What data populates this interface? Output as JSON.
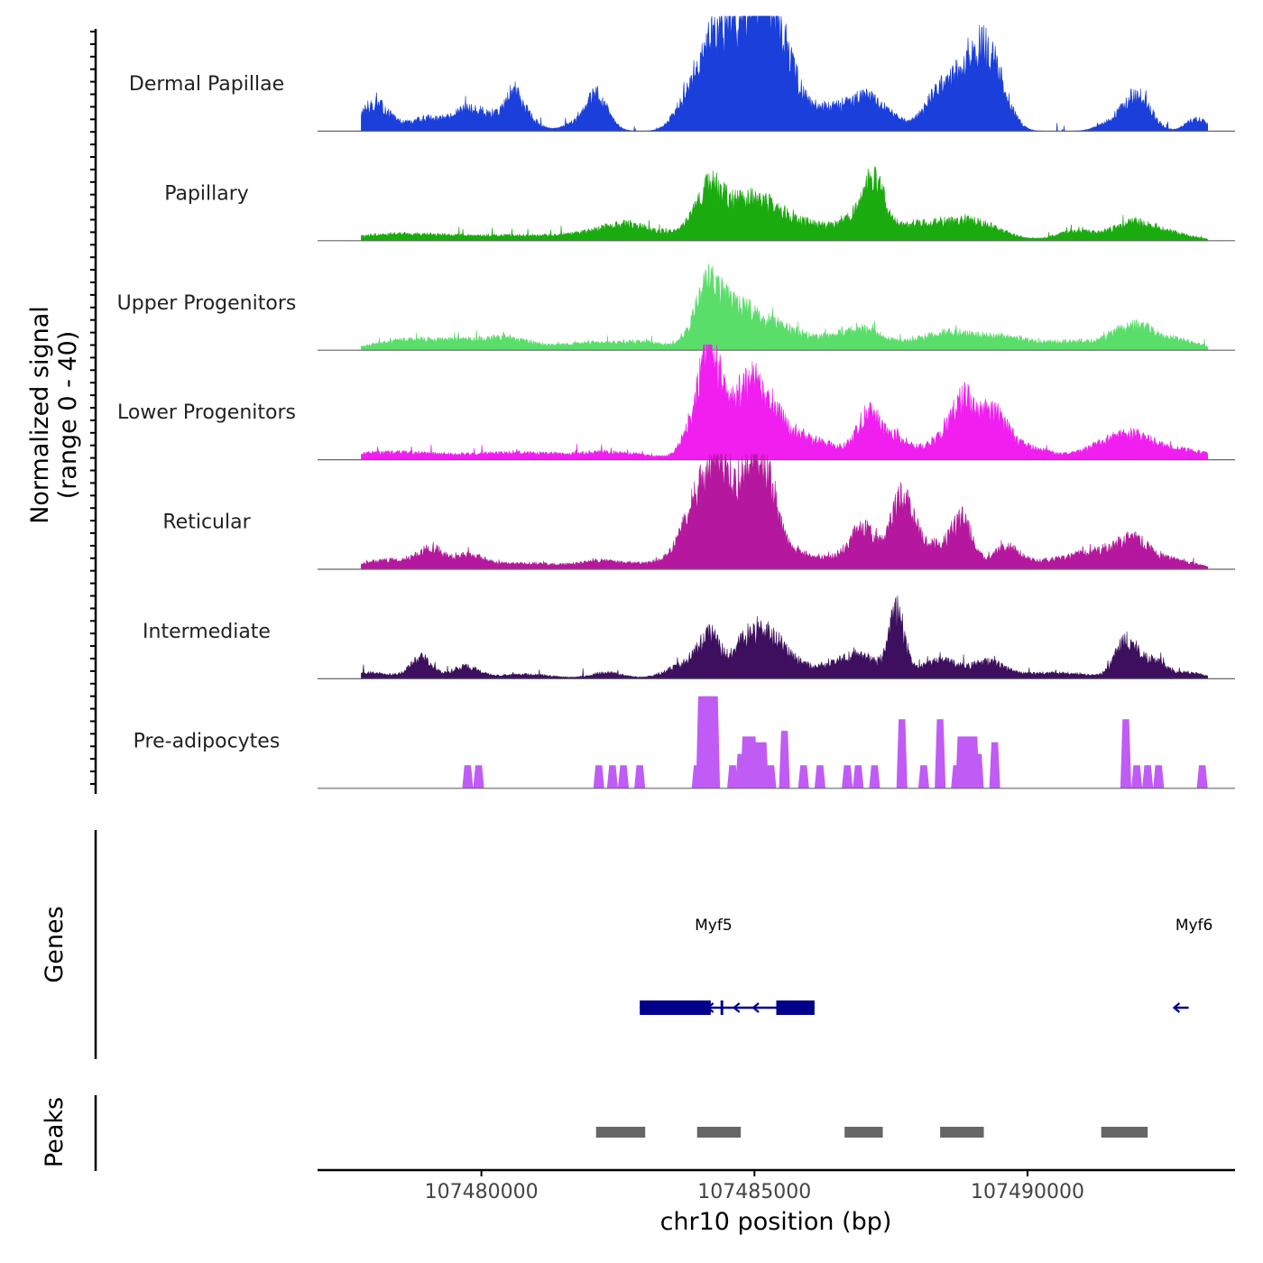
{
  "chart_data": {
    "type": "area",
    "chromosome": "chr10",
    "xlabel": "chr10 position (bp)",
    "xlim": [
      107477000,
      107493800
    ],
    "x_ticks": [
      107480000,
      107485000,
      107490000
    ],
    "x_tick_labels": [
      "107480000",
      "107485000",
      "107490000"
    ],
    "coverage": {
      "ylabel_line1": "Normalized signal",
      "ylabel_line2": "(range 0 - 40)",
      "ylim": [
        0,
        40
      ],
      "series": [
        {
          "name": "Dermal Papillae",
          "color": "#1a3fdb",
          "start": 107477800,
          "end": 107493300,
          "peaks": [
            [
              107477800,
              1.0,
              3
            ],
            [
              107478050,
              0.8,
              4
            ],
            [
              107478200,
              1.0,
              4
            ],
            [
              107478850,
              1.2,
              2
            ],
            [
              107479100,
              1.0,
              3
            ],
            [
              107479700,
              1.0,
              6
            ],
            [
              107480050,
              1.0,
              3
            ],
            [
              107480350,
              1.0,
              3
            ],
            [
              107480600,
              0.6,
              10
            ],
            [
              107480850,
              0.8,
              4
            ],
            [
              107481900,
              1.2,
              4
            ],
            [
              107482100,
              0.6,
              6
            ],
            [
              107482200,
              0.8,
              4
            ],
            [
              107483800,
              1.0,
              10
            ],
            [
              107484150,
              1.0,
              16
            ],
            [
              107484400,
              1.0,
              12
            ],
            [
              107484550,
              1.0,
              9
            ],
            [
              107484800,
              1.0,
              10
            ],
            [
              107485100,
              1.4,
              27
            ],
            [
              107485250,
              1.2,
              12
            ],
            [
              107485500,
              1.0,
              9
            ],
            [
              107485800,
              1.0,
              6
            ],
            [
              107486300,
              1.0,
              6
            ],
            [
              107486750,
              1.0,
              6
            ],
            [
              107487100,
              1.0,
              8
            ],
            [
              107487500,
              1.0,
              4
            ],
            [
              107488300,
              1.0,
              8
            ],
            [
              107488850,
              1.4,
              18
            ],
            [
              107489200,
              1.0,
              12
            ],
            [
              107489450,
              1.0,
              10
            ],
            [
              107491500,
              1.0,
              2
            ],
            [
              107491950,
              1.0,
              10
            ],
            [
              107492150,
              0.8,
              3
            ],
            [
              107493100,
              0.8,
              4
            ]
          ]
        },
        {
          "name": "Papillary",
          "color": "#1aab0f",
          "start": 107477800,
          "end": 107493300,
          "peaks": [
            [
              107478150,
              3.0,
              1.5
            ],
            [
              107479200,
              3.0,
              1.5
            ],
            [
              107480700,
              2.5,
              1.5
            ],
            [
              107482300,
              2.5,
              3.0
            ],
            [
              107482700,
              1.5,
              2.0
            ],
            [
              107483600,
              3.5,
              2.0
            ],
            [
              107484150,
              1.0,
              14.0
            ],
            [
              107484700,
              1.6,
              8.0
            ],
            [
              107485200,
              1.6,
              8.0
            ],
            [
              107486000,
              2.0,
              5.0
            ],
            [
              107486900,
              1.2,
              6.0
            ],
            [
              107487200,
              0.8,
              16.0
            ],
            [
              107488000,
              2.0,
              5.0
            ],
            [
              107489000,
              2.0,
              6.0
            ],
            [
              107490900,
              1.5,
              3.0
            ],
            [
              107491950,
              1.5,
              6.0
            ],
            [
              107492700,
              1.5,
              2.0
            ]
          ]
        },
        {
          "name": "Upper Progenitors",
          "color": "#5ade6a",
          "start": 107477800,
          "end": 107493300,
          "peaks": [
            [
              107478400,
              2.0,
              1.5
            ],
            [
              107479500,
              3.5,
              3.5
            ],
            [
              107480500,
              1.5,
              2.5
            ],
            [
              107482100,
              2.5,
              2.5
            ],
            [
              107483100,
              1.5,
              2.0
            ],
            [
              107484150,
              1.0,
              21.0
            ],
            [
              107484700,
              1.2,
              12.0
            ],
            [
              107485300,
              1.5,
              7.0
            ],
            [
              107486100,
              2.0,
              4.0
            ],
            [
              107487000,
              1.5,
              6.0
            ],
            [
              107488600,
              2.5,
              6.0
            ],
            [
              107489700,
              1.5,
              3.0
            ],
            [
              107490800,
              2.0,
              3.0
            ],
            [
              107491950,
              1.5,
              8.0
            ],
            [
              107492800,
              1.5,
              3.0
            ]
          ]
        },
        {
          "name": "Lower Progenitors",
          "color": "#f01ff0",
          "start": 107477800,
          "end": 107493300,
          "peaks": [
            [
              107478100,
              2.5,
              2.0
            ],
            [
              107479200,
              3.0,
              1.5
            ],
            [
              107480600,
              2.5,
              2.0
            ],
            [
              107482300,
              3.0,
              2.5
            ],
            [
              107483900,
              0.8,
              12.0
            ],
            [
              107484200,
              0.7,
              34.0
            ],
            [
              107484800,
              1.2,
              20.0
            ],
            [
              107485200,
              1.2,
              12.0
            ],
            [
              107485700,
              1.5,
              6.0
            ],
            [
              107486400,
              2.0,
              4.0
            ],
            [
              107487100,
              0.8,
              14.0
            ],
            [
              107487600,
              1.0,
              7.0
            ],
            [
              107488400,
              1.2,
              6.0
            ],
            [
              107488850,
              0.9,
              18.0
            ],
            [
              107489400,
              1.0,
              14.0
            ],
            [
              107490000,
              1.5,
              4.0
            ],
            [
              107491500,
              2.0,
              5.0
            ],
            [
              107492000,
              1.5,
              5.0
            ],
            [
              107492900,
              2.0,
              3.0
            ]
          ]
        },
        {
          "name": "Reticular",
          "color": "#b5179e",
          "start": 107477800,
          "end": 107493300,
          "peaks": [
            [
              107478300,
              2.0,
              3.0
            ],
            [
              107479100,
              1.0,
              6.0
            ],
            [
              107479800,
              1.0,
              4.0
            ],
            [
              107480800,
              3.0,
              2.0
            ],
            [
              107482200,
              1.5,
              2.0
            ],
            [
              107483200,
              2.5,
              2.0
            ],
            [
              107484000,
              1.2,
              22.0
            ],
            [
              107484400,
              0.9,
              28.0
            ],
            [
              107484900,
              0.9,
              22.0
            ],
            [
              107485200,
              0.9,
              26.0
            ],
            [
              107485700,
              1.5,
              4.0
            ],
            [
              107486500,
              2.0,
              3.0
            ],
            [
              107487000,
              1.0,
              12.0
            ],
            [
              107487700,
              0.8,
              22.0
            ],
            [
              107488200,
              1.2,
              8.0
            ],
            [
              107488800,
              0.8,
              16.0
            ],
            [
              107489600,
              1.0,
              7.0
            ],
            [
              107490500,
              2.0,
              3.0
            ],
            [
              107491300,
              1.5,
              5.0
            ],
            [
              107491950,
              1.2,
              9.0
            ],
            [
              107492700,
              1.5,
              3.0
            ]
          ]
        },
        {
          "name": "Intermediate",
          "color": "#3d0f5e",
          "start": 107477800,
          "end": 107493300,
          "peaks": [
            [
              107478000,
              1.5,
              2.0
            ],
            [
              107478900,
              0.8,
              7.0
            ],
            [
              107479700,
              1.0,
              4.0
            ],
            [
              107480800,
              2.0,
              1.5
            ],
            [
              107482300,
              1.2,
              2.0
            ],
            [
              107483800,
              1.5,
              5.0
            ],
            [
              107484200,
              0.8,
              12.0
            ],
            [
              107484800,
              0.8,
              10.0
            ],
            [
              107485200,
              1.0,
              12.0
            ],
            [
              107485600,
              1.2,
              6.0
            ],
            [
              107486500,
              1.5,
              5.0
            ],
            [
              107487000,
              1.0,
              6.0
            ],
            [
              107487600,
              0.6,
              22.0
            ],
            [
              107488400,
              1.5,
              6.0
            ],
            [
              107489300,
              1.2,
              5.0
            ],
            [
              107490500,
              2.5,
              2.0
            ],
            [
              107491800,
              0.8,
              12.0
            ],
            [
              107492300,
              1.0,
              6.0
            ],
            [
              107493000,
              1.0,
              2.0
            ]
          ]
        },
        {
          "name": "Pre-adipocytes",
          "color": "#c05cf5",
          "spikes": [
            [
              107479750,
              8,
              1
            ],
            [
              107479950,
              8,
              1
            ],
            [
              107482150,
              8,
              1
            ],
            [
              107482400,
              8,
              1
            ],
            [
              107482600,
              8,
              1
            ],
            [
              107482900,
              8,
              1
            ],
            [
              107483950,
              8,
              1
            ],
            [
              107484150,
              32,
              3
            ],
            [
              107484600,
              8,
              1
            ],
            [
              107484750,
              12,
              1
            ],
            [
              107484900,
              18,
              2
            ],
            [
              107485100,
              16,
              2
            ],
            [
              107485300,
              8,
              1
            ],
            [
              107485550,
              20,
              1
            ],
            [
              107485900,
              8,
              1
            ],
            [
              107486200,
              8,
              1
            ],
            [
              107486700,
              8,
              1
            ],
            [
              107486900,
              8,
              1
            ],
            [
              107487200,
              8,
              1
            ],
            [
              107487700,
              24,
              1
            ],
            [
              107488100,
              8,
              1
            ],
            [
              107488400,
              24,
              1
            ],
            [
              107488700,
              8,
              1
            ],
            [
              107488900,
              18,
              3
            ],
            [
              107489100,
              12,
              1
            ],
            [
              107489400,
              16,
              1
            ],
            [
              107491800,
              24,
              1
            ],
            [
              107492000,
              8,
              1
            ],
            [
              107492200,
              8,
              1
            ],
            [
              107492400,
              8,
              1
            ],
            [
              107493200,
              8,
              1
            ]
          ]
        }
      ]
    },
    "genes": {
      "ylabel": "Genes",
      "items": [
        {
          "name": "Myf5",
          "label_x": 107484250,
          "strand": "-",
          "start": 107482900,
          "end": 107486100,
          "exons": [
            [
              107482900,
              107484200
            ],
            [
              107485400,
              107486100
            ]
          ],
          "color": "#00008b"
        },
        {
          "name": "Myf6",
          "label_x": 107493050,
          "strand": "-",
          "start": 107492700,
          "end": 107492950,
          "exons": [],
          "color": "#00008b"
        }
      ]
    },
    "peaks": {
      "ylabel": "Peaks",
      "color": "#666666",
      "regions": [
        [
          107482100,
          107483000
        ],
        [
          107483950,
          107484750
        ],
        [
          107486650,
          107487350
        ],
        [
          107488400,
          107489200
        ],
        [
          107491350,
          107492200
        ]
      ]
    }
  }
}
